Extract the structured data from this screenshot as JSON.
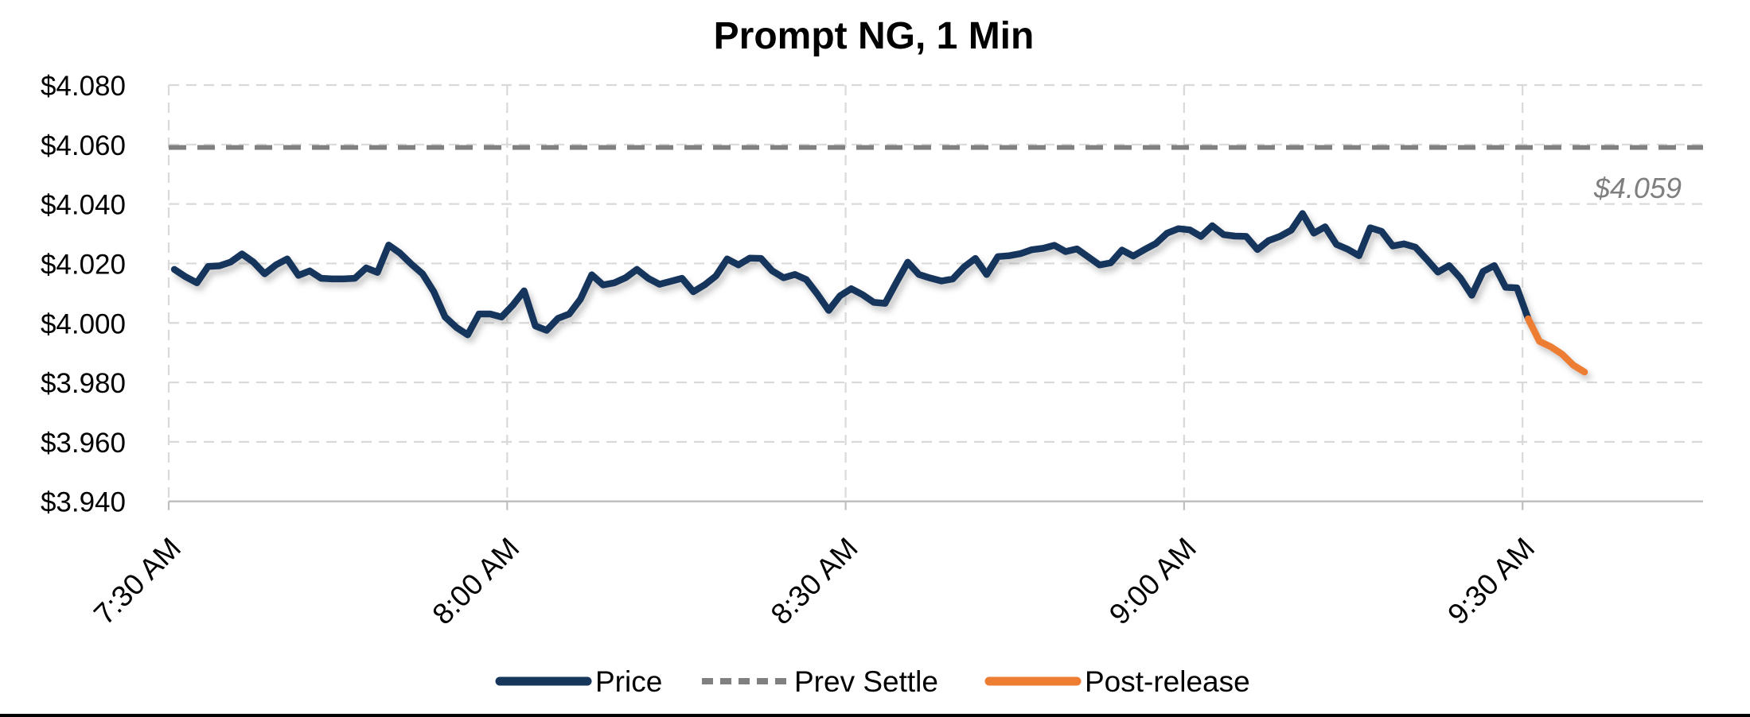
{
  "title": "Prompt NG, 1 Min",
  "annotation_label": "$4.059",
  "legend": {
    "price_label": "Price",
    "prev_settle_label": "Prev Settle",
    "post_release_label": "Post-release"
  },
  "colors": {
    "price": "#16365C",
    "post_release": "#ED7D31",
    "prev_settle": "#808080",
    "gridline": "#D9D9D9",
    "axis_line": "#BFBFBF",
    "annotation": "#7F7F7F",
    "text": "#000000"
  },
  "chart_data": {
    "type": "line",
    "title": "Prompt NG, 1 Min",
    "x_tick_labels": [
      "7:30 AM",
      "8:00 AM",
      "8:30 AM",
      "9:00 AM",
      "9:30 AM"
    ],
    "x_tick_minutes": [
      0,
      30,
      60,
      90,
      120
    ],
    "x_total_minutes": 136,
    "y_tick_labels": [
      "$4.080",
      "$4.060",
      "$4.040",
      "$4.020",
      "$4.000",
      "$3.980",
      "$3.960",
      "$3.940"
    ],
    "y_tick_values": [
      4.08,
      4.06,
      4.04,
      4.02,
      4.0,
      3.98,
      3.96,
      3.94
    ],
    "ylim": [
      3.94,
      4.08
    ],
    "prev_settle_value": 4.059,
    "series": [
      {
        "name": "Price",
        "start_minute": 0,
        "values": [
          4.018,
          4.0155,
          4.0135,
          4.019,
          4.0192,
          4.0205,
          4.0232,
          4.0205,
          4.0165,
          4.0195,
          4.0215,
          4.016,
          4.0175,
          4.015,
          4.0148,
          4.0148,
          4.015,
          4.0185,
          4.017,
          4.0262,
          4.0235,
          4.0198,
          4.0165,
          4.0105,
          4.002,
          3.9985,
          3.996,
          4.003,
          4.003,
          4.002,
          4.006,
          4.0108,
          3.999,
          3.9975,
          4.0015,
          4.003,
          4.008,
          4.0162,
          4.0128,
          4.0135,
          4.0152,
          4.018,
          4.015,
          4.013,
          4.014,
          4.015,
          4.0105,
          4.0128,
          4.0158,
          4.0215,
          4.0195,
          4.0218,
          4.0217,
          4.0175,
          4.0152,
          4.0163,
          4.0146,
          4.0097,
          4.0042,
          4.0091,
          4.0115,
          4.0095,
          4.0069,
          4.0066,
          4.0136,
          4.0204,
          4.0163,
          4.0151,
          4.0141,
          4.0148,
          4.0188,
          4.0217,
          4.0163,
          4.0223,
          4.0226,
          4.0233,
          4.0246,
          4.0251,
          4.0261,
          4.024,
          4.0249,
          4.0222,
          4.0195,
          4.0202,
          4.0245,
          4.0225,
          4.0247,
          4.0267,
          4.0302,
          4.0317,
          4.0313,
          4.0291,
          4.0327,
          4.0297,
          4.0292,
          4.0291,
          4.0247,
          4.0277,
          4.0291,
          4.0312,
          4.0368,
          4.0302,
          4.0323,
          4.0264,
          4.0248,
          4.0226,
          4.032,
          4.0308,
          4.0259,
          4.0266,
          4.0255,
          4.0214,
          4.0171,
          4.0193,
          4.0151,
          4.0093,
          4.0173,
          4.0193,
          4.012,
          4.0118,
          4.0014
        ]
      },
      {
        "name": "Post-release",
        "start_minute": 120,
        "values": [
          4.0014,
          3.9938,
          3.992,
          3.9895,
          3.9858,
          3.9835
        ]
      }
    ]
  }
}
